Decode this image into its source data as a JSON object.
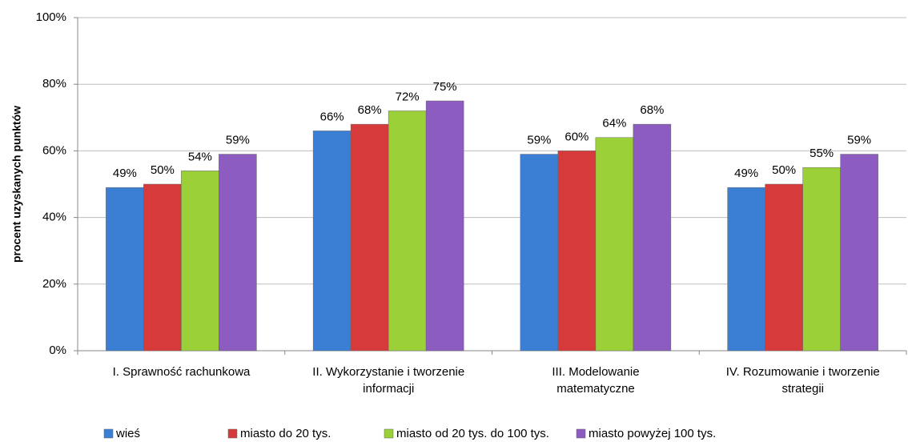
{
  "chart_data": {
    "type": "bar",
    "y_label": "procent uzyskanych punktów",
    "categories": [
      "I. Sprawność rachunkowa",
      "II. Wykorzystanie i tworzenie\ninformacji",
      "III. Modelowanie\nmatematyczne",
      "IV. Rozumowanie i tworzenie\nstrategii"
    ],
    "series": [
      {
        "name": "wieś",
        "color": "#3b7fd4",
        "values": [
          49,
          66,
          59,
          49
        ],
        "value_labels": [
          "49%",
          "66%",
          "59%",
          "49%"
        ]
      },
      {
        "name": "miasto do 20 tys.",
        "color": "#d63a3a",
        "values": [
          50,
          68,
          60,
          50
        ],
        "value_labels": [
          "50%",
          "68%",
          "60%",
          "50%"
        ]
      },
      {
        "name": "miasto od 20 tys. do 100 tys.",
        "color": "#9cd038",
        "values": [
          54,
          72,
          64,
          55
        ],
        "value_labels": [
          "54%",
          "72%",
          "64%",
          "55%"
        ]
      },
      {
        "name": "miasto powyżej 100 tys.",
        "color": "#8c5cc0",
        "values": [
          59,
          75,
          68,
          59
        ],
        "value_labels": [
          "59%",
          "75%",
          "68%",
          "59%"
        ]
      }
    ],
    "ylim": [
      0,
      100
    ],
    "yticks": [
      {
        "value": 0,
        "label": "0%"
      },
      {
        "value": 20,
        "label": "20%"
      },
      {
        "value": 40,
        "label": "40%"
      },
      {
        "value": 60,
        "label": "60%"
      },
      {
        "value": 80,
        "label": "80%"
      },
      {
        "value": 100,
        "label": "100%"
      }
    ],
    "grid": true,
    "legend": "bottom"
  }
}
